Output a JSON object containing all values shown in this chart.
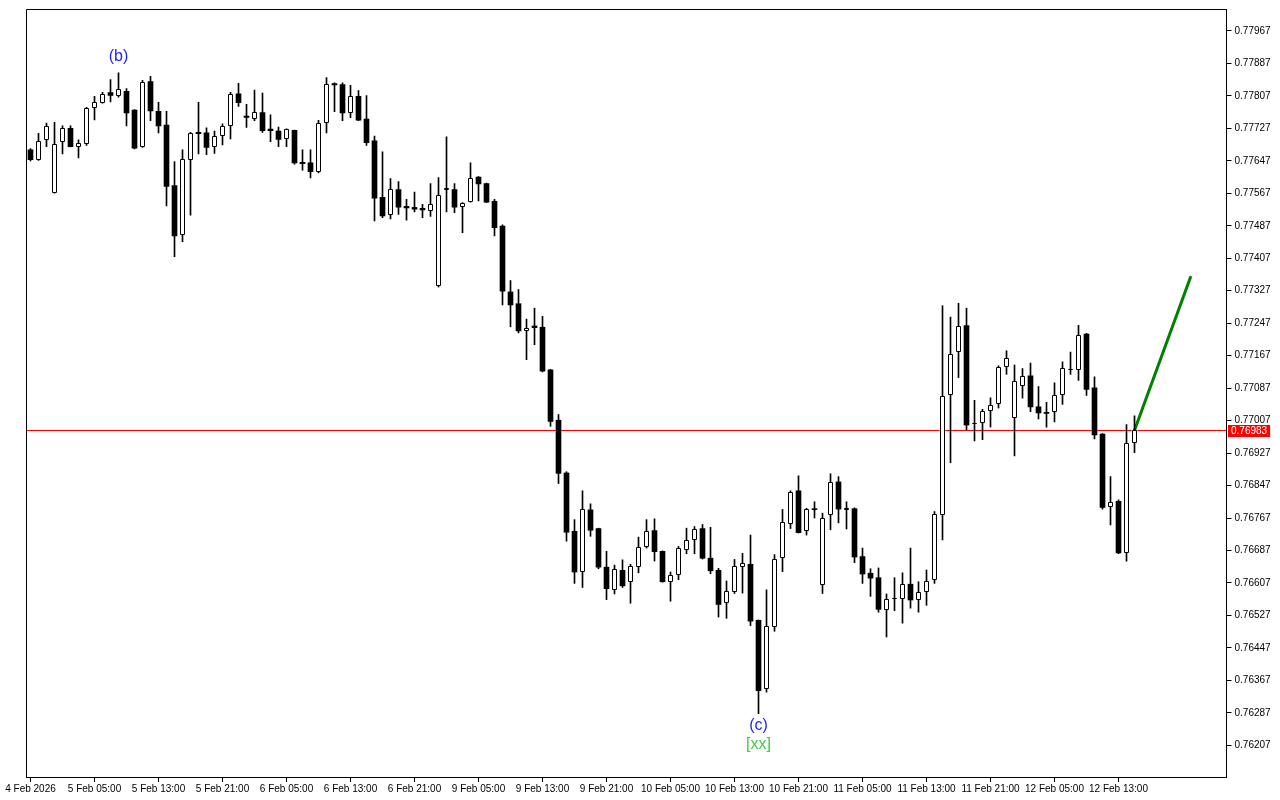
{
  "chart_data": {
    "type": "candlestick",
    "categories": [
      "4 Feb 2026",
      null,
      null,
      null,
      null,
      null,
      null,
      null,
      "5 Feb 05:00",
      null,
      null,
      null,
      null,
      null,
      null,
      null,
      "5 Feb 13:00",
      null,
      null,
      null,
      null,
      null,
      null,
      null,
      "5 Feb 21:00",
      null,
      null,
      null,
      null,
      null,
      null,
      null,
      "6 Feb 05:00",
      null,
      null,
      null,
      null,
      null,
      null,
      null,
      "6 Feb 13:00",
      null,
      null,
      null,
      null,
      null,
      null,
      null,
      "6 Feb 21:00",
      null,
      null,
      null,
      null,
      null,
      null,
      null,
      "9 Feb 05:00",
      null,
      null,
      null,
      null,
      null,
      null,
      null,
      "9 Feb 13:00",
      null,
      null,
      null,
      null,
      null,
      null,
      null,
      "9 Feb 21:00",
      null,
      null,
      null,
      null,
      null,
      null,
      null,
      "10 Feb 05:00",
      null,
      null,
      null,
      null,
      null,
      null,
      null,
      "10 Feb 13:00",
      null,
      null,
      null,
      null,
      null,
      null,
      null,
      "10 Feb 21:00",
      null,
      null,
      null,
      null,
      null,
      null,
      null,
      "11 Feb 05:00",
      null,
      null,
      null,
      null,
      null,
      null,
      null,
      "11 Feb 13:00",
      null,
      null,
      null,
      null,
      null,
      null,
      null,
      "11 Feb 21:00",
      null,
      null,
      null,
      null,
      null,
      null,
      null,
      "12 Feb 05:00",
      null,
      null,
      null,
      null,
      null,
      null,
      null,
      "12 Feb 13:00",
      null,
      null,
      null,
      null,
      null,
      null,
      null,
      null,
      null,
      null,
      null,
      null,
      null
    ],
    "ohlc": [
      [
        0.77674,
        0.77677,
        0.77647,
        0.7765
      ],
      [
        0.7765,
        0.77715,
        0.77648,
        0.77697
      ],
      [
        0.77699,
        0.7774,
        0.77682,
        0.77732
      ],
      [
        0.77568,
        0.77742,
        0.77567,
        0.77688
      ],
      [
        0.77693,
        0.77733,
        0.77664,
        0.77727
      ],
      [
        0.77727,
        0.77733,
        0.77681,
        0.77682
      ],
      [
        0.7768,
        0.77699,
        0.77654,
        0.7769
      ],
      [
        0.77689,
        0.77779,
        0.77685,
        0.77776
      ],
      [
        0.77778,
        0.77806,
        0.77748,
        0.77792
      ],
      [
        0.7779,
        0.77816,
        0.77789,
        0.77812
      ],
      [
        0.77815,
        0.77847,
        0.77792,
        0.77808
      ],
      [
        0.77807,
        0.77864,
        0.77804,
        0.77823
      ],
      [
        0.77818,
        0.77825,
        0.77733,
        0.77765
      ],
      [
        0.77772,
        0.77773,
        0.77676,
        0.77678
      ],
      [
        0.77681,
        0.77845,
        0.7768,
        0.77842
      ],
      [
        0.77842,
        0.77855,
        0.77746,
        0.7777
      ],
      [
        0.77769,
        0.77791,
        0.77716,
        0.77733
      ],
      [
        0.77735,
        0.77769,
        0.77536,
        0.77584
      ],
      [
        0.77586,
        0.77645,
        0.77411,
        0.77462
      ],
      [
        0.77465,
        0.77674,
        0.77448,
        0.77651
      ],
      [
        0.7765,
        0.77717,
        0.77513,
        0.77716
      ],
      [
        0.77717,
        0.77791,
        0.77664,
        0.77714
      ],
      [
        0.77716,
        0.77728,
        0.77662,
        0.7768
      ],
      [
        0.77681,
        0.7772,
        0.77665,
        0.77708
      ],
      [
        0.77707,
        0.77738,
        0.77686,
        0.77733
      ],
      [
        0.77733,
        0.77816,
        0.77701,
        0.77812
      ],
      [
        0.77812,
        0.77838,
        0.77781,
        0.7779
      ],
      [
        0.77757,
        0.77786,
        0.77729,
        0.77754
      ],
      [
        0.77751,
        0.77821,
        0.77746,
        0.77768
      ],
      [
        0.77766,
        0.77814,
        0.77717,
        0.77721
      ],
      [
        0.77725,
        0.7776,
        0.77694,
        0.77721
      ],
      [
        0.7772,
        0.7773,
        0.77682,
        0.777
      ],
      [
        0.777,
        0.77726,
        0.77682,
        0.77725
      ],
      [
        0.77722,
        0.77723,
        0.77639,
        0.77642
      ],
      [
        0.77643,
        0.77674,
        0.77624,
        0.7764
      ],
      [
        0.77642,
        0.77674,
        0.77605,
        0.7762
      ],
      [
        0.77619,
        0.77747,
        0.77617,
        0.77739
      ],
      [
        0.77739,
        0.77852,
        0.77716,
        0.77837
      ],
      [
        0.77837,
        0.77839,
        0.77768,
        0.77834
      ],
      [
        0.77835,
        0.77839,
        0.77746,
        0.77765
      ],
      [
        0.77765,
        0.77833,
        0.77753,
        0.77806
      ],
      [
        0.77806,
        0.7782,
        0.77746,
        0.77747
      ],
      [
        0.7775,
        0.77808,
        0.77685,
        0.77692
      ],
      [
        0.77696,
        0.77708,
        0.77499,
        0.77555
      ],
      [
        0.77557,
        0.77669,
        0.77507,
        0.77511
      ],
      [
        0.77513,
        0.77603,
        0.77504,
        0.77578
      ],
      [
        0.77576,
        0.77596,
        0.77515,
        0.77533
      ],
      [
        0.77535,
        0.77552,
        0.77501,
        0.77531
      ],
      [
        0.77532,
        0.7757,
        0.77521,
        0.77528
      ],
      [
        0.7753,
        0.7754,
        0.77507,
        0.77526
      ],
      [
        0.77523,
        0.77591,
        0.7751,
        0.77541
      ],
      [
        0.77339,
        0.77606,
        0.77336,
        0.77564
      ],
      [
        0.77576,
        0.77706,
        0.77521,
        0.7758
      ],
      [
        0.77576,
        0.77591,
        0.77519,
        0.77533
      ],
      [
        0.77532,
        0.77544,
        0.7747,
        0.77543
      ],
      [
        0.77546,
        0.77642,
        0.77545,
        0.77605
      ],
      [
        0.77607,
        0.77608,
        0.77548,
        0.7759
      ],
      [
        0.77591,
        0.77592,
        0.77544,
        0.77545
      ],
      [
        0.77547,
        0.77552,
        0.77462,
        0.77482
      ],
      [
        0.77486,
        0.77489,
        0.77292,
        0.77326
      ],
      [
        0.77324,
        0.77352,
        0.77238,
        0.77292
      ],
      [
        0.77295,
        0.7733,
        0.77223,
        0.77228
      ],
      [
        0.77227,
        0.77257,
        0.77157,
        0.77236
      ],
      [
        0.7724,
        0.77284,
        0.77194,
        0.77236
      ],
      [
        0.77237,
        0.77264,
        0.77127,
        0.77129
      ],
      [
        0.77132,
        0.77133,
        0.76993,
        0.77005
      ],
      [
        0.77008,
        0.77022,
        0.76852,
        0.76877
      ],
      [
        0.76878,
        0.76881,
        0.7671,
        0.76732
      ],
      [
        0.76734,
        0.76763,
        0.76606,
        0.76634
      ],
      [
        0.76635,
        0.76834,
        0.76596,
        0.7679
      ],
      [
        0.76787,
        0.76802,
        0.76722,
        0.76737
      ],
      [
        0.76741,
        0.76742,
        0.76642,
        0.76646
      ],
      [
        0.76646,
        0.76685,
        0.76566,
        0.76593
      ],
      [
        0.7659,
        0.76651,
        0.7658,
        0.76641
      ],
      [
        0.76638,
        0.76664,
        0.76596,
        0.766
      ],
      [
        0.7661,
        0.76653,
        0.76557,
        0.7665
      ],
      [
        0.76647,
        0.7672,
        0.76632,
        0.76696
      ],
      [
        0.76695,
        0.76763,
        0.76693,
        0.76736
      ],
      [
        0.76736,
        0.76765,
        0.76661,
        0.76684
      ],
      [
        0.76685,
        0.76686,
        0.76609,
        0.7661
      ],
      [
        0.7661,
        0.76634,
        0.76562,
        0.76626
      ],
      [
        0.76626,
        0.76697,
        0.76615,
        0.76692
      ],
      [
        0.76689,
        0.76742,
        0.76679,
        0.76712
      ],
      [
        0.76713,
        0.76746,
        0.76679,
        0.76741
      ],
      [
        0.76741,
        0.76751,
        0.76666,
        0.76668
      ],
      [
        0.76668,
        0.76744,
        0.7663,
        0.76637
      ],
      [
        0.76638,
        0.76643,
        0.76523,
        0.76554
      ],
      [
        0.76557,
        0.76612,
        0.7652,
        0.76587
      ],
      [
        0.76584,
        0.76665,
        0.76581,
        0.76648
      ],
      [
        0.76646,
        0.7668,
        0.76582,
        0.76655
      ],
      [
        0.76653,
        0.76725,
        0.76502,
        0.76513
      ],
      [
        0.76515,
        0.76516,
        0.76285,
        0.76342
      ],
      [
        0.76345,
        0.7659,
        0.76338,
        0.765
      ],
      [
        0.76498,
        0.76677,
        0.76488,
        0.76666
      ],
      [
        0.76668,
        0.76788,
        0.76635,
        0.76756
      ],
      [
        0.76753,
        0.76834,
        0.76741,
        0.76831
      ],
      [
        0.76834,
        0.76871,
        0.7673,
        0.76731
      ],
      [
        0.76734,
        0.76791,
        0.76725,
        0.7679
      ],
      [
        0.7679,
        0.76807,
        0.76767,
        0.76788
      ],
      [
        0.76602,
        0.76779,
        0.76581,
        0.76768
      ],
      [
        0.76775,
        0.76876,
        0.76738,
        0.76856
      ],
      [
        0.76856,
        0.76869,
        0.76755,
        0.76789
      ],
      [
        0.76787,
        0.76807,
        0.7674,
        0.76792
      ],
      [
        0.7679,
        0.76792,
        0.76657,
        0.76671
      ],
      [
        0.76672,
        0.76693,
        0.76606,
        0.76629
      ],
      [
        0.76631,
        0.76642,
        0.76574,
        0.76619
      ],
      [
        0.7662,
        0.76644,
        0.76535,
        0.76542
      ],
      [
        0.76541,
        0.7658,
        0.76474,
        0.76567
      ],
      [
        0.76567,
        0.7662,
        0.76539,
        0.76569
      ],
      [
        0.76568,
        0.76632,
        0.76508,
        0.76604
      ],
      [
        0.76604,
        0.76693,
        0.76545,
        0.76565
      ],
      [
        0.76565,
        0.7661,
        0.76535,
        0.76585
      ],
      [
        0.76585,
        0.76639,
        0.76552,
        0.76611
      ],
      [
        0.76614,
        0.76783,
        0.76606,
        0.76777
      ],
      [
        0.76775,
        0.7729,
        0.76713,
        0.77068
      ],
      [
        0.7707,
        0.77262,
        0.76903,
        0.77171
      ],
      [
        0.77175,
        0.77296,
        0.77113,
        0.77241
      ],
      [
        0.77241,
        0.77284,
        0.76984,
        0.76996
      ],
      [
        0.76998,
        0.77057,
        0.76957,
        0.77
      ],
      [
        0.77,
        0.77035,
        0.7696,
        0.77031
      ],
      [
        0.77031,
        0.77063,
        0.76991,
        0.77046
      ],
      [
        0.77048,
        0.77142,
        0.77038,
        0.77139
      ],
      [
        0.77139,
        0.77179,
        0.77121,
        0.77161
      ],
      [
        0.77014,
        0.77144,
        0.7692,
        0.77105
      ],
      [
        0.77092,
        0.77135,
        0.77062,
        0.77117
      ],
      [
        0.77117,
        0.77149,
        0.77029,
        0.77041
      ],
      [
        0.77041,
        0.77091,
        0.77011,
        0.77026
      ],
      [
        0.77027,
        0.77052,
        0.76991,
        0.77025
      ],
      [
        0.77029,
        0.771,
        0.77004,
        0.7707
      ],
      [
        0.7707,
        0.77152,
        0.77047,
        0.77136
      ],
      [
        0.77132,
        0.77176,
        0.77121,
        0.77135
      ],
      [
        0.77131,
        0.77242,
        0.77106,
        0.77217
      ],
      [
        0.7722,
        0.77222,
        0.77069,
        0.77084
      ],
      [
        0.77088,
        0.77115,
        0.76962,
        0.76972
      ],
      [
        0.76974,
        0.76975,
        0.76789,
        0.76793
      ],
      [
        0.76794,
        0.76869,
        0.7675,
        0.76807
      ],
      [
        0.76808,
        0.76812,
        0.76679,
        0.76681
      ],
      [
        0.7668,
        0.76997,
        0.76661,
        0.76951
      ],
      [
        0.76951,
        0.77019,
        0.76928,
        0.76983
      ],
      null,
      null,
      null,
      null,
      null,
      null,
      null,
      null,
      null,
      null,
      null
    ],
    "colors": [
      "#000000",
      "#ffffff",
      "#ffffff",
      "#ffffff",
      "#ffffff",
      "#000000",
      "#ffffff",
      "#ffffff",
      "#ffffff",
      "#ffffff",
      "#000000",
      "#ffffff",
      "#000000",
      "#000000",
      "#ffffff",
      "#000000",
      "#000000",
      "#000000",
      "#000000",
      "#ffffff",
      "#ffffff",
      "#000000",
      "#000000",
      "#ffffff",
      "#ffffff",
      "#ffffff",
      "#000000",
      "#000000",
      "#ffffff",
      "#000000",
      "#000000",
      "#000000",
      "#ffffff",
      "#000000",
      "#000000",
      "#000000",
      "#ffffff",
      "#ffffff",
      "#000000",
      "#000000",
      "#ffffff",
      "#000000",
      "#000000",
      "#000000",
      "#000000",
      "#ffffff",
      "#000000",
      "#000000",
      "#000000",
      "#000000",
      "#ffffff",
      "#ffffff",
      "#ffffff",
      "#000000",
      "#ffffff",
      "#ffffff",
      "#000000",
      "#000000",
      "#000000",
      "#000000",
      "#000000",
      "#000000",
      "#ffffff",
      "#000000",
      "#000000",
      "#000000",
      "#000000",
      "#000000",
      "#000000",
      "#ffffff",
      "#000000",
      "#000000",
      "#000000",
      "#ffffff",
      "#000000",
      "#ffffff",
      "#ffffff",
      "#ffffff",
      "#000000",
      "#000000",
      "#ffffff",
      "#ffffff",
      "#ffffff",
      "#ffffff",
      "#000000",
      "#000000",
      "#000000",
      "#ffffff",
      "#ffffff",
      "#ffffff",
      "#000000",
      "#000000",
      "#ffffff",
      "#ffffff",
      "#ffffff",
      "#ffffff",
      "#000000",
      "#ffffff",
      "#000000",
      "#ffffff",
      "#ffffff",
      "#000000",
      "#ffffff",
      "#000000",
      "#000000",
      "#000000",
      "#000000",
      "#ffffff",
      "#ffffff",
      "#ffffff",
      "#000000",
      "#ffffff",
      "#ffffff",
      "#ffffff",
      "#ffffff",
      "#ffffff",
      "#ffffff",
      "#000000",
      "#ffffff",
      "#ffffff",
      "#ffffff",
      "#ffffff",
      "#ffffff",
      "#ffffff",
      "#ffffff",
      "#000000",
      "#000000",
      "#000000",
      "#ffffff",
      "#ffffff",
      "#ffffff",
      "#ffffff",
      "#000000",
      "#000000",
      "#000000",
      "#ffffff",
      "#000000",
      "#ffffff",
      "#ffffff",
      null,
      null,
      null,
      null,
      null,
      null,
      null,
      null,
      null,
      null,
      null
    ],
    "series": [
      {
        "type": "line",
        "color": "#008000",
        "values": [
          null,
          null,
          null,
          null,
          null,
          null,
          null,
          null,
          null,
          null,
          null,
          null,
          null,
          null,
          null,
          null,
          null,
          null,
          null,
          null,
          null,
          null,
          null,
          null,
          null,
          null,
          null,
          null,
          null,
          null,
          null,
          null,
          null,
          null,
          null,
          null,
          null,
          null,
          null,
          null,
          null,
          null,
          null,
          null,
          null,
          null,
          null,
          null,
          null,
          null,
          null,
          null,
          null,
          null,
          null,
          null,
          null,
          null,
          null,
          null,
          null,
          null,
          null,
          null,
          null,
          null,
          null,
          null,
          null,
          null,
          null,
          null,
          null,
          null,
          null,
          null,
          null,
          null,
          null,
          null,
          null,
          null,
          null,
          null,
          null,
          null,
          null,
          null,
          null,
          null,
          null,
          null,
          null,
          null,
          null,
          null,
          null,
          null,
          null,
          null,
          null,
          null,
          null,
          null,
          null,
          null,
          null,
          null,
          null,
          null,
          null,
          null,
          null,
          null,
          null,
          null,
          null,
          null,
          null,
          null,
          null,
          null,
          null,
          null,
          null,
          null,
          null,
          null,
          null,
          null,
          null,
          null,
          null,
          null,
          null,
          null,
          null,
          null,
          0.76983,
          null,
          null,
          null,
          null,
          null,
          null,
          0.7736,
          null,
          null,
          null,
          null
        ]
      }
    ],
    "ylim": [
      0.76129,
      0.78021
    ],
    "yticks": [
      0.77967,
      0.77887,
      0.77807,
      0.77727,
      0.77647,
      0.77567,
      0.77487,
      0.77407,
      0.77327,
      0.77247,
      0.77167,
      0.77087,
      0.77007,
      0.76927,
      0.76847,
      0.76767,
      0.76687,
      0.76607,
      0.76527,
      0.76447,
      0.76367,
      0.76287,
      0.76207
    ],
    "ref_lines": [
      {
        "axis": "y",
        "value": 0.76983,
        "label": "0.76983",
        "color": "#ff0000"
      }
    ],
    "annotations": [
      "(b)",
      "(c)",
      "[xx]"
    ]
  }
}
